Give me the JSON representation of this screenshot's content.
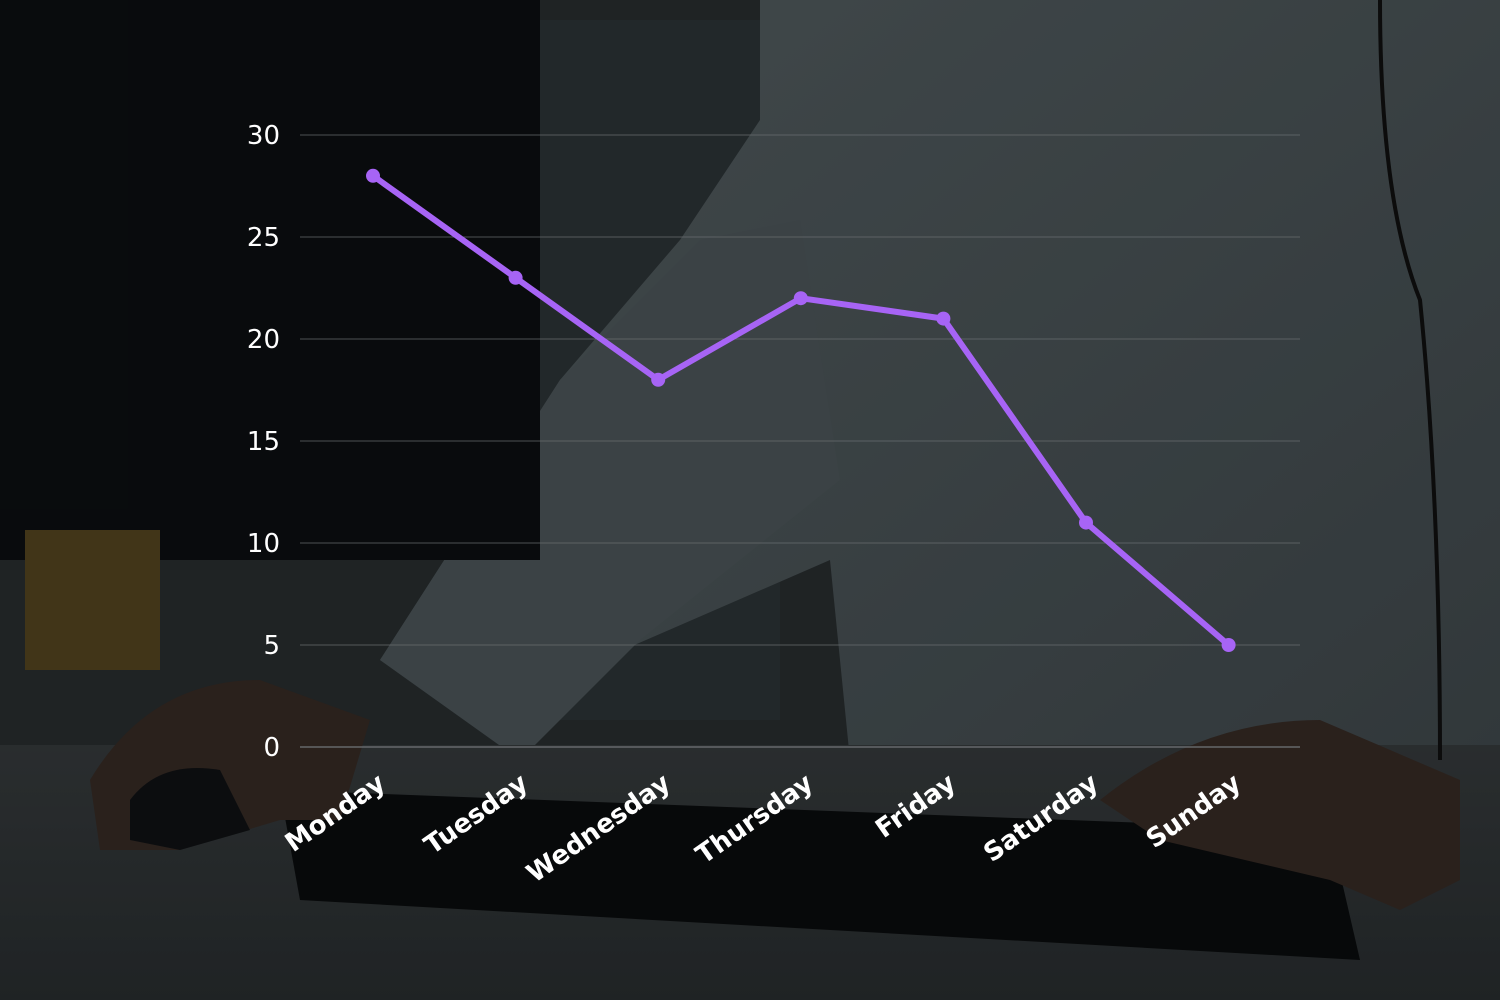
{
  "chart_data": {
    "type": "line",
    "categories": [
      "Monday",
      "Tuesday",
      "Wednesday",
      "Thursday",
      "Friday",
      "Saturday",
      "Sunday"
    ],
    "series": [
      {
        "values": [
          28,
          23,
          18,
          22,
          21,
          11,
          5
        ]
      }
    ],
    "y_ticks": [
      "0",
      "5",
      "10",
      "15",
      "20",
      "25",
      "30"
    ],
    "ylim": [
      0,
      30
    ],
    "grid": true,
    "title": "",
    "xlabel": "",
    "ylabel": ""
  },
  "colors": {
    "line": "#a764f5",
    "axis_text": "#ffffff",
    "grid": "#6b6f72",
    "overlay": "#000000"
  },
  "background": {
    "description_icon": "office-worker-photo"
  }
}
